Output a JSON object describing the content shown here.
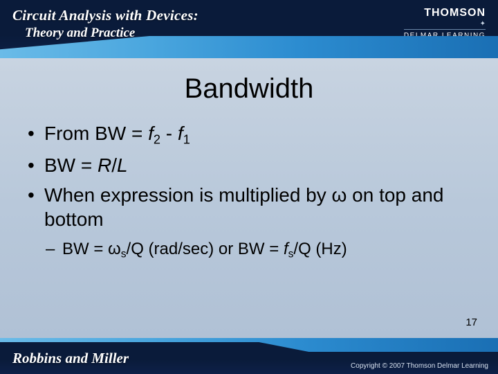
{
  "header": {
    "book_title_line1": "Circuit Analysis with Devices:",
    "book_title_line2": "Theory and Practice",
    "brand_top": "THOMSON",
    "brand_bottom": "DELMAR LEARNING"
  },
  "slide": {
    "title": "Bandwidth",
    "title_fontsize": 40,
    "bullets": [
      {
        "prefix": "From BW = ",
        "f": "f",
        "sub1": "2",
        "mid": " - ",
        "f2": "f",
        "sub2": "1",
        "suffix": ""
      },
      {
        "prefix": "BW = ",
        "R": "R",
        "slash": "/",
        "L": "L"
      },
      {
        "text": "When expression is multiplied by ω on top and bottom"
      }
    ],
    "sub_bullet": {
      "prefix": "BW = ω",
      "sub_s": "s",
      "mid": "/Q (rad/sec) or BW = ",
      "f": "f",
      "sub_s2": "s",
      "suffix": "/Q (Hz)"
    },
    "body_fontsize": 28,
    "sub_fontsize": 24,
    "omega_char": "ω"
  },
  "page_number": "17",
  "footer": {
    "authors": "Robbins and Miller",
    "copyright": "Copyright © 2007 Thomson Delmar Learning"
  },
  "colors": {
    "bg_top": "#d4dde8",
    "bg_bottom": "#aebfd4",
    "band_dark": "#0a1b3a",
    "band_blue_light": "#6abbe8",
    "band_blue_dark": "#1a6fb4",
    "text": "#000000",
    "header_text": "#ffffff"
  }
}
